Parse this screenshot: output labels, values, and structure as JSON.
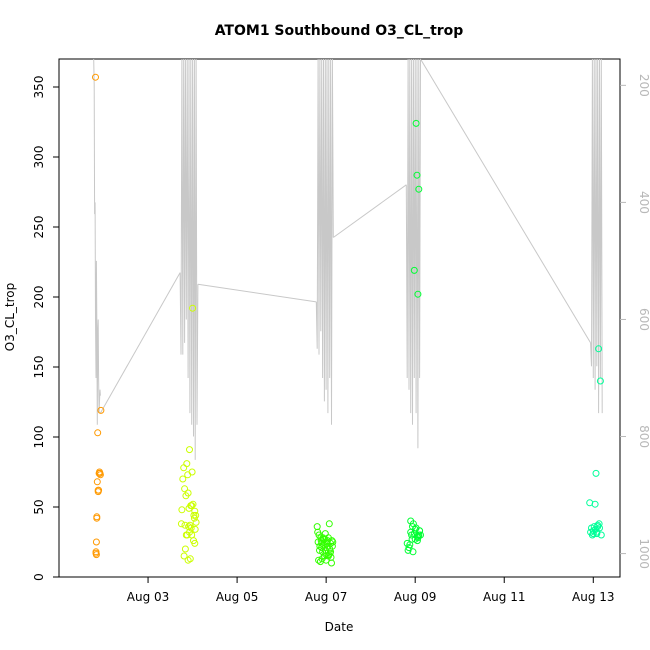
{
  "chart_data": {
    "type": "scatter",
    "title": "ATOM1 Southbound O3_CL_trop",
    "xlabel": "Date",
    "ylabel": "O3_CL_trop",
    "x_ticks": [
      {
        "day": 3,
        "label": "Aug 03"
      },
      {
        "day": 5,
        "label": "Aug 05"
      },
      {
        "day": 7,
        "label": "Aug 07"
      },
      {
        "day": 9,
        "label": "Aug 09"
      },
      {
        "day": 11,
        "label": "Aug 11"
      },
      {
        "day": 13,
        "label": "Aug 13"
      }
    ],
    "xlim_days": [
      1.0,
      13.6
    ],
    "ylim": [
      0,
      370
    ],
    "y_ticks": [
      0,
      50,
      100,
      150,
      200,
      250,
      300,
      350
    ],
    "y2_ticks": [
      200,
      400,
      600,
      800,
      1000
    ],
    "y2lim": [
      1040,
      155
    ],
    "y2_reversed": true,
    "grid": false,
    "legend": "none",
    "colors": {
      "orange": "#ff9900",
      "yellow": "#ccff00",
      "green": "#33ff00",
      "bright_green": "#00ff33",
      "aqua": "#00ff99",
      "pressure_line": "#c8c8c8",
      "axis": "#000000",
      "right_axis": "#b8b8b8"
    },
    "series": [
      {
        "color": "#ff9900",
        "x": [
          1.82,
          1.83,
          1.83,
          1.84,
          1.84,
          1.85,
          1.85,
          1.86,
          1.87,
          1.88,
          1.88,
          1.89,
          1.9,
          1.91,
          1.92,
          1.93,
          1.94
        ],
        "y": [
          357,
          17,
          18,
          16,
          25,
          43,
          42,
          68,
          103,
          61,
          62,
          62,
          74,
          75,
          74,
          73,
          119
        ]
      },
      {
        "color": "#ccff00",
        "x": [
          3.75,
          3.78,
          3.8,
          3.82,
          3.83,
          3.85,
          3.86,
          3.87,
          3.88,
          3.89,
          3.9,
          3.91,
          3.92,
          3.93,
          3.94,
          3.95,
          3.96,
          3.97,
          3.98,
          3.99,
          4.0,
          4.01,
          4.02,
          4.03,
          4.04,
          4.05,
          4.06,
          4.07,
          4.08,
          3.81,
          3.84,
          3.9,
          3.98,
          4.05,
          3.93,
          3.76
        ],
        "y": [
          38,
          70,
          78,
          63,
          37,
          58,
          30,
          81,
          30,
          73,
          12,
          36,
          49,
          91,
          37,
          13,
          51,
          35,
          30,
          75,
          192,
          52,
          26,
          44,
          42,
          24,
          34,
          44,
          39,
          15,
          20,
          60,
          51,
          47,
          32,
          48
        ]
      },
      {
        "color": "#33ff00",
        "x": [
          6.8,
          6.82,
          6.83,
          6.84,
          6.85,
          6.86,
          6.87,
          6.88,
          6.89,
          6.9,
          6.91,
          6.92,
          6.93,
          6.94,
          6.95,
          6.96,
          6.97,
          6.98,
          6.99,
          7.0,
          7.01,
          7.02,
          7.03,
          7.04,
          7.05,
          7.06,
          7.07,
          7.08,
          7.09,
          7.1,
          7.11,
          7.12,
          7.13,
          7.14,
          7.15,
          7.1,
          6.81,
          6.9,
          7.0,
          7.05
        ],
        "y": [
          36,
          25,
          12,
          30,
          19,
          22,
          11,
          28,
          26,
          24,
          13,
          18,
          28,
          27,
          23,
          15,
          27,
          31,
          19,
          12,
          24,
          25,
          26,
          22,
          15,
          16,
          38,
          20,
          17,
          18,
          14,
          10,
          26,
          22,
          25,
          24,
          32,
          21,
          17,
          28
        ]
      },
      {
        "color": "#00ff33",
        "x": [
          8.82,
          8.84,
          8.86,
          8.88,
          8.9,
          8.92,
          8.94,
          8.96,
          8.98,
          9.0,
          9.02,
          9.04,
          9.06,
          9.08,
          9.1,
          9.12,
          9.0,
          9.02,
          9.05,
          9.07,
          8.95,
          9.06,
          9.08,
          9.1,
          8.9,
          8.93,
          8.98,
          9.04
        ],
        "y": [
          24,
          19,
          21,
          23,
          40,
          30,
          36,
          38,
          219,
          27,
          324,
          287,
          202,
          277,
          33,
          30,
          34,
          35,
          26,
          29,
          18,
          28,
          30,
          33,
          32,
          27,
          31,
          29
        ]
      },
      {
        "color": "#00ff99",
        "x": [
          12.92,
          12.94,
          12.96,
          12.98,
          13.0,
          13.02,
          13.04,
          13.06,
          13.08,
          13.1,
          13.12,
          13.14,
          13.16,
          13.18,
          13.0,
          13.05,
          13.08,
          13.1,
          13.13
        ],
        "y": [
          53,
          32,
          35,
          30,
          31,
          36,
          52,
          74,
          32,
          37,
          163,
          35,
          140,
          30,
          33,
          34,
          31,
          36,
          38
        ]
      }
    ],
    "pressure_line": {
      "color": "#c8c8c8",
      "segments": [
        {
          "x": [
            1.78,
            1.79,
            1.8,
            1.81,
            1.82,
            1.83,
            1.84,
            1.85,
            1.86,
            1.87,
            1.88,
            1.89,
            1.9,
            1.91,
            1.92,
            1.93
          ],
          "p": [
            150,
            200,
            420,
            400,
            600,
            700,
            500,
            600,
            780,
            620,
            600,
            700,
            760,
            740,
            720,
            730
          ]
        },
        {
          "x": [
            1.93,
            3.72
          ],
          "p": [
            760,
            520
          ]
        },
        {
          "x": [
            3.72,
            3.74,
            3.76,
            3.78,
            3.8,
            3.82,
            3.84,
            3.86,
            3.88,
            3.9,
            3.92,
            3.94,
            3.96,
            3.98,
            4.0,
            4.02,
            4.04,
            4.06,
            4.08,
            4.1,
            4.12
          ],
          "p": [
            520,
            660,
            150,
            660,
            150,
            640,
            150,
            600,
            150,
            700,
            150,
            760,
            150,
            780,
            150,
            800,
            150,
            840,
            150,
            780,
            540
          ]
        },
        {
          "x": [
            4.12,
            6.78
          ],
          "p": [
            540,
            570
          ]
        },
        {
          "x": [
            6.78,
            6.8,
            6.82,
            6.84,
            6.86,
            6.88,
            6.9,
            6.92,
            6.94,
            6.96,
            6.98,
            7.0,
            7.02,
            7.04,
            7.06,
            7.08,
            7.1,
            7.12,
            7.14,
            7.16
          ],
          "p": [
            570,
            650,
            150,
            660,
            150,
            620,
            150,
            700,
            150,
            740,
            150,
            720,
            150,
            760,
            150,
            700,
            150,
            780,
            150,
            460
          ]
        },
        {
          "x": [
            7.16,
            8.8
          ],
          "p": [
            460,
            370
          ]
        },
        {
          "x": [
            8.8,
            8.82,
            8.84,
            8.86,
            8.88,
            8.9,
            8.92,
            8.94,
            8.96,
            8.98,
            9.0,
            9.02,
            9.04,
            9.06,
            9.08,
            9.1,
            9.12
          ],
          "p": [
            370,
            700,
            150,
            720,
            150,
            760,
            150,
            780,
            150,
            700,
            150,
            760,
            150,
            820,
            150,
            700,
            150
          ]
        },
        {
          "x": [
            9.12,
            12.94
          ],
          "p": [
            150,
            640
          ]
        },
        {
          "x": [
            12.94,
            12.96,
            12.98,
            13.0,
            13.02,
            13.04,
            13.06,
            13.08,
            13.1,
            13.12,
            13.14,
            13.16,
            13.18,
            13.2
          ],
          "p": [
            640,
            680,
            150,
            700,
            150,
            720,
            150,
            680,
            150,
            760,
            150,
            700,
            150,
            760
          ]
        }
      ]
    }
  }
}
